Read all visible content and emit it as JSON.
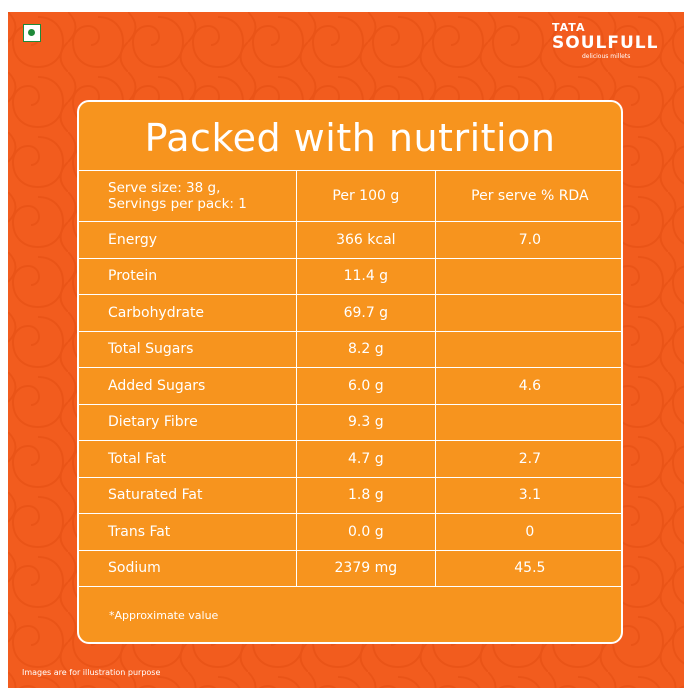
{
  "brand": {
    "tata": "TATA",
    "soulfull": "SOULFULL",
    "tagline": "delicious millets"
  },
  "title": "Packed with nutrition",
  "table": {
    "header": {
      "serve_line1": "Serve size: 38 g,",
      "serve_line2": "Servings per pack: 1",
      "col2": "Per 100 g",
      "col3": "Per serve % RDA"
    },
    "rows": [
      {
        "nutrient": "Energy",
        "per100": "366 kcal",
        "rda": "7.0"
      },
      {
        "nutrient": "Protein",
        "per100": "11.4 g",
        "rda": ""
      },
      {
        "nutrient": "Carbohydrate",
        "per100": "69.7 g",
        "rda": ""
      },
      {
        "nutrient": "Total Sugars",
        "per100": "8.2 g",
        "rda": ""
      },
      {
        "nutrient": "Added Sugars",
        "per100": "6.0 g",
        "rda": "4.6"
      },
      {
        "nutrient": "Dietary Fibre",
        "per100": "9.3 g",
        "rda": ""
      },
      {
        "nutrient": "Total Fat",
        "per100": "4.7 g",
        "rda": "2.7"
      },
      {
        "nutrient": "Saturated Fat",
        "per100": "1.8 g",
        "rda": "3.1"
      },
      {
        "nutrient": "Trans Fat",
        "per100": "0.0 g",
        "rda": "0"
      },
      {
        "nutrient": "Sodium",
        "per100": "2379 mg",
        "rda": "45.5"
      }
    ]
  },
  "note": "*Approximate value",
  "disclaimer": "Images are for illustration purpose",
  "colors": {
    "background": "#f25c1e",
    "card": "#f7941e",
    "text": "#ffffff",
    "veg_mark": "#1f8a3a"
  },
  "icons": {
    "veg_mark": "veg-symbol-icon"
  }
}
